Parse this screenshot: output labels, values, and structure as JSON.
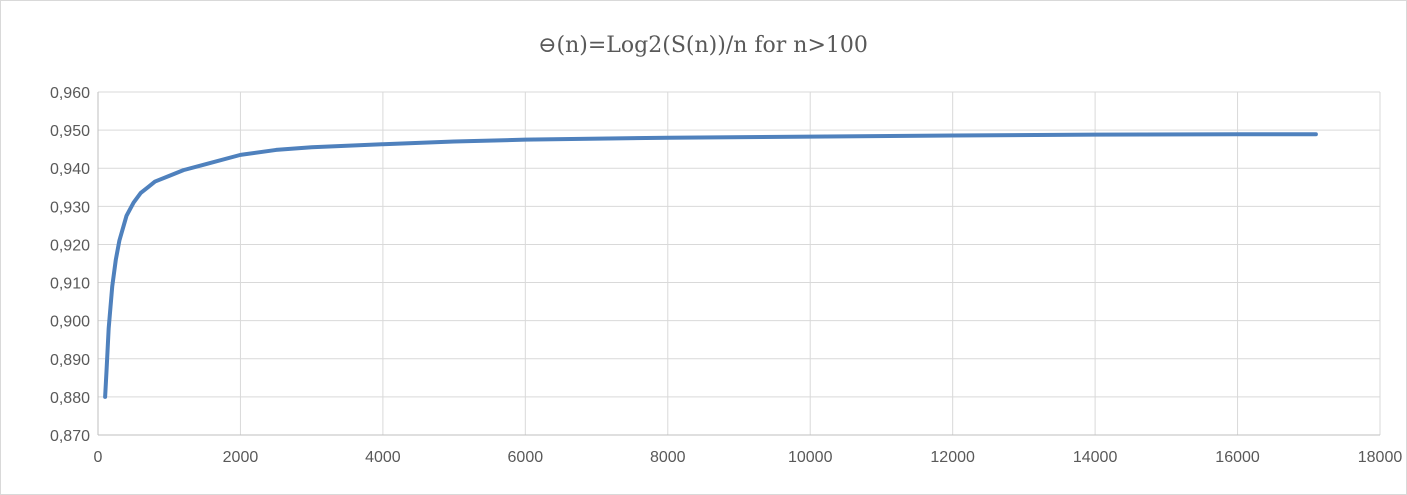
{
  "chart_data": {
    "type": "line",
    "title": "⊖(n)=Log2(S(n))/n for n>100",
    "xlabel": "",
    "ylabel": "",
    "xlim": [
      0,
      18000
    ],
    "ylim": [
      0.87,
      0.96
    ],
    "x_ticks": [
      "0",
      "2000",
      "4000",
      "6000",
      "8000",
      "10000",
      "12000",
      "14000",
      "16000",
      "18000"
    ],
    "x_tick_values": [
      0,
      2000,
      4000,
      6000,
      8000,
      10000,
      12000,
      14000,
      16000,
      18000
    ],
    "y_ticks": [
      "0,870",
      "0,880",
      "0,890",
      "0,900",
      "0,910",
      "0,920",
      "0,930",
      "0,940",
      "0,950",
      "0,960"
    ],
    "y_tick_values": [
      0.87,
      0.88,
      0.89,
      0.9,
      0.91,
      0.92,
      0.93,
      0.94,
      0.95,
      0.96
    ],
    "grid": true,
    "legend": "none",
    "series": [
      {
        "color": "#4f81bd",
        "x": [
          100,
          120,
          150,
          200,
          250,
          300,
          400,
          500,
          600,
          700,
          800,
          1000,
          1200,
          1500,
          2000,
          2500,
          3000,
          4000,
          5000,
          6000,
          8000,
          10000,
          12000,
          14000,
          16000,
          17100
        ],
        "y": [
          0.88,
          0.887,
          0.898,
          0.909,
          0.916,
          0.921,
          0.9275,
          0.931,
          0.9335,
          0.935,
          0.9365,
          0.938,
          0.9395,
          0.941,
          0.9435,
          0.9448,
          0.9455,
          0.9463,
          0.947,
          0.9475,
          0.948,
          0.9483,
          0.9486,
          0.9488,
          0.9489,
          0.9489
        ]
      }
    ]
  }
}
